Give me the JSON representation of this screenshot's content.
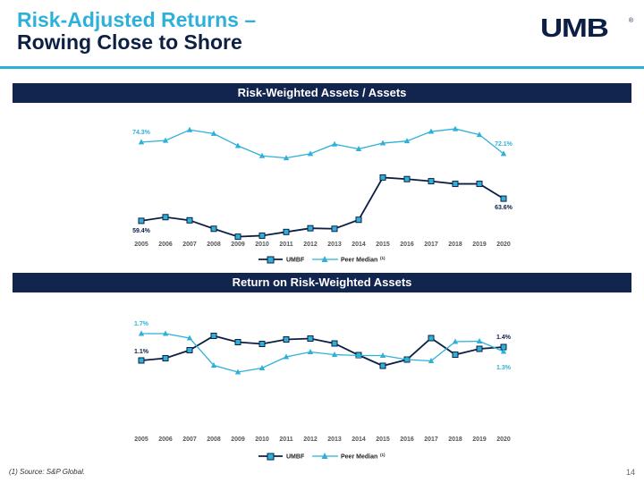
{
  "header": {
    "title_line1": "Risk-Adjusted Returns –",
    "title_line2": "Rowing Close to Shore",
    "logo": "UMB",
    "logo_mark": "®"
  },
  "colors": {
    "umbf": "#0c1f45",
    "peer": "#2eb1d8",
    "banner": "#12254f"
  },
  "chart_data": [
    {
      "type": "line",
      "title": "Risk-Weighted Assets / Assets",
      "categories": [
        "2005",
        "2006",
        "2007",
        "2008",
        "2009",
        "2010",
        "2011",
        "2012",
        "2013",
        "2014",
        "2015",
        "2016",
        "2017",
        "2018",
        "2019",
        "2020"
      ],
      "ylim": [
        56,
        78
      ],
      "series": [
        {
          "name": "UMBF",
          "marker": "square",
          "color": "#0c1f45",
          "values": [
            59.4,
            60.1,
            59.5,
            57.9,
            56.4,
            56.6,
            57.3,
            58.0,
            57.9,
            59.6,
            67.6,
            67.3,
            66.9,
            66.4,
            66.4,
            63.6
          ]
        },
        {
          "name": "Peer Median",
          "legend_suffix": "(1)",
          "marker": "triangle",
          "color": "#2eb1d8",
          "values": [
            74.3,
            74.6,
            76.6,
            75.9,
            73.6,
            71.7,
            71.3,
            72.1,
            73.9,
            73.0,
            74.1,
            74.5,
            76.3,
            76.8,
            75.7,
            72.1
          ]
        }
      ],
      "labels": [
        {
          "series": 0,
          "index": 0,
          "text": "59.4%"
        },
        {
          "series": 1,
          "index": 0,
          "text": "74.3%"
        },
        {
          "series": 0,
          "index": 15,
          "text": "63.6%"
        },
        {
          "series": 1,
          "index": 15,
          "text": "72.1%"
        }
      ],
      "legend": [
        {
          "label": "UMBF",
          "sup": ""
        },
        {
          "label": "Peer Median",
          "sup": "(1)"
        }
      ]
    },
    {
      "type": "line",
      "title": "Return on Risk-Weighted Assets",
      "categories": [
        "2005",
        "2006",
        "2007",
        "2008",
        "2009",
        "2010",
        "2011",
        "2012",
        "2013",
        "2014",
        "2015",
        "2016",
        "2017",
        "2018",
        "2019",
        "2020"
      ],
      "ylim": [
        0.0,
        2.0
      ],
      "series": [
        {
          "name": "UMBF",
          "marker": "square",
          "color": "#0c1f45",
          "values": [
            1.1,
            1.15,
            1.33,
            1.65,
            1.51,
            1.47,
            1.57,
            1.59,
            1.48,
            1.22,
            0.98,
            1.12,
            1.6,
            1.23,
            1.36,
            1.4
          ]
        },
        {
          "name": "Peer Median",
          "legend_suffix": "(1)",
          "marker": "triangle",
          "color": "#2eb1d8",
          "values": [
            1.7,
            1.7,
            1.6,
            0.99,
            0.84,
            0.93,
            1.18,
            1.29,
            1.23,
            1.21,
            1.21,
            1.12,
            1.09,
            1.52,
            1.53,
            1.3
          ]
        }
      ],
      "labels": [
        {
          "series": 0,
          "index": 0,
          "text": "1.1%"
        },
        {
          "series": 1,
          "index": 0,
          "text": "1.7%"
        },
        {
          "series": 0,
          "index": 15,
          "text": "1.4%"
        },
        {
          "series": 1,
          "index": 15,
          "text": "1.3%"
        }
      ],
      "legend": [
        {
          "label": "UMBF",
          "sup": ""
        },
        {
          "label": "Peer Median",
          "sup": "(1)"
        }
      ]
    }
  ],
  "footer": {
    "footnote": "(1) Source: S&P Global.",
    "page_number": "14"
  }
}
